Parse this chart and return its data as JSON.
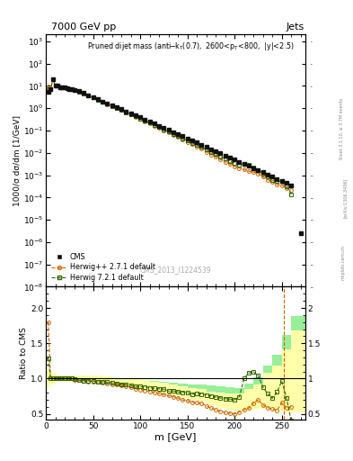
{
  "title_top": "7000 GeV pp",
  "title_right": "Jets",
  "watermark": "CMS_2013_I1224539",
  "rivet_label": "Rivet 3.1.10, ≥ 3.7M events",
  "arxiv_label": "[arXiv:1306.3436]",
  "mcplots_label": "mcplots.cern.ch",
  "ylabel_main": "1000/σ dσ/dm [1/GeV]",
  "ylabel_ratio": "Ratio to CMS",
  "xlabel": "m [GeV]",
  "xlim": [
    0,
    275
  ],
  "ylim_main": [
    1e-08,
    2000.0
  ],
  "ylim_ratio": [
    0.42,
    2.3
  ],
  "cms_color": "#111111",
  "herwig271_color": "#cc6600",
  "herwig721_color": "#336600",
  "band271_color": "#ffffaa",
  "band721_color": "#99ee99",
  "cms_x": [
    2.5,
    5,
    7.5,
    10,
    12.5,
    15,
    17.5,
    20,
    22.5,
    25,
    27.5,
    30,
    35,
    40,
    45,
    50,
    55,
    60,
    65,
    70,
    75,
    80,
    85,
    90,
    95,
    100,
    105,
    110,
    115,
    120,
    125,
    130,
    135,
    140,
    145,
    150,
    155,
    160,
    165,
    170,
    175,
    180,
    185,
    190,
    195,
    200,
    205,
    210,
    215,
    220,
    225,
    230,
    235,
    240,
    245,
    250,
    255,
    260
  ],
  "cms_y": [
    5.5,
    7,
    20,
    10,
    10,
    9,
    9,
    8.5,
    8,
    7.5,
    7.2,
    6.8,
    5.8,
    4.8,
    3.8,
    3.1,
    2.5,
    2.0,
    1.65,
    1.35,
    1.1,
    0.9,
    0.73,
    0.59,
    0.48,
    0.39,
    0.315,
    0.255,
    0.205,
    0.165,
    0.133,
    0.107,
    0.086,
    0.069,
    0.056,
    0.045,
    0.036,
    0.029,
    0.023,
    0.018,
    0.0146,
    0.0118,
    0.0095,
    0.0077,
    0.0062,
    0.005,
    0.004,
    0.0032,
    0.0026,
    0.0021,
    0.00168,
    0.00134,
    0.00107,
    0.00086,
    0.00069,
    0.00055,
    0.00044,
    0.00035
  ],
  "hw271_x": [
    2.5,
    5,
    7.5,
    10,
    12.5,
    15,
    17.5,
    20,
    22.5,
    25,
    27.5,
    30,
    35,
    40,
    45,
    50,
    55,
    60,
    65,
    70,
    75,
    80,
    85,
    90,
    95,
    100,
    105,
    110,
    115,
    120,
    125,
    130,
    135,
    140,
    145,
    150,
    155,
    160,
    165,
    170,
    175,
    180,
    185,
    190,
    195,
    200,
    205,
    210,
    215,
    220,
    225,
    230,
    235,
    240,
    245,
    250,
    255,
    260
  ],
  "hw271_y": [
    9.9,
    7,
    20,
    10,
    10,
    9,
    9,
    8.5,
    8,
    7.5,
    7.2,
    6.65,
    5.65,
    4.62,
    3.65,
    2.98,
    2.38,
    1.88,
    1.54,
    1.24,
    1.0,
    0.81,
    0.65,
    0.52,
    0.41,
    0.33,
    0.262,
    0.209,
    0.165,
    0.13,
    0.103,
    0.081,
    0.064,
    0.05,
    0.039,
    0.031,
    0.024,
    0.019,
    0.015,
    0.011,
    0.0085,
    0.0066,
    0.0051,
    0.004,
    0.00316,
    0.0025,
    0.0021,
    0.00179,
    0.00151,
    0.00137,
    0.00117,
    0.00084,
    0.00063,
    0.00049,
    0.00038,
    0.00036,
    0.00026,
    0.00021
  ],
  "hw721_x": [
    2.5,
    5,
    7.5,
    10,
    12.5,
    15,
    17.5,
    20,
    22.5,
    25,
    27.5,
    30,
    35,
    40,
    45,
    50,
    55,
    60,
    65,
    70,
    75,
    80,
    85,
    90,
    95,
    100,
    105,
    110,
    115,
    120,
    125,
    130,
    135,
    140,
    145,
    150,
    155,
    160,
    165,
    170,
    175,
    180,
    185,
    190,
    195,
    200,
    205,
    210,
    215,
    220,
    225,
    230,
    235,
    240,
    245,
    250,
    255,
    260
  ],
  "hw721_y": [
    7.1,
    7,
    20,
    10,
    10,
    9,
    9,
    8.5,
    8,
    7.5,
    7.2,
    6.72,
    5.68,
    4.66,
    3.69,
    2.98,
    2.4,
    1.9,
    1.57,
    1.27,
    1.02,
    0.828,
    0.668,
    0.535,
    0.427,
    0.346,
    0.278,
    0.222,
    0.177,
    0.141,
    0.113,
    0.088,
    0.071,
    0.056,
    0.045,
    0.036,
    0.028,
    0.023,
    0.018,
    0.0138,
    0.011,
    0.0087,
    0.0069,
    0.0055,
    0.0044,
    0.0035,
    0.00296,
    0.0032,
    0.0028,
    0.0023,
    0.00175,
    0.00118,
    0.00084,
    0.00062,
    0.00056,
    0.00053,
    0.00032,
    0.00014
  ],
  "ratio271_x": [
    2.5,
    5,
    7.5,
    10,
    12.5,
    15,
    17.5,
    20,
    22.5,
    25,
    27.5,
    30,
    35,
    40,
    45,
    50,
    55,
    60,
    65,
    70,
    75,
    80,
    85,
    90,
    95,
    100,
    105,
    110,
    115,
    120,
    125,
    130,
    135,
    140,
    145,
    150,
    155,
    160,
    165,
    170,
    175,
    180,
    185,
    190,
    195,
    200,
    205,
    210,
    215,
    220,
    225,
    230,
    235,
    240,
    245,
    250,
    255,
    260
  ],
  "ratio271_y": [
    1.8,
    1.0,
    1.0,
    1.0,
    1.0,
    1.0,
    1.0,
    1.0,
    1.0,
    1.0,
    1.0,
    0.978,
    0.974,
    0.963,
    0.96,
    0.96,
    0.952,
    0.94,
    0.935,
    0.919,
    0.91,
    0.9,
    0.89,
    0.881,
    0.854,
    0.846,
    0.832,
    0.82,
    0.805,
    0.788,
    0.774,
    0.757,
    0.744,
    0.724,
    0.696,
    0.688,
    0.666,
    0.655,
    0.652,
    0.61,
    0.582,
    0.559,
    0.537,
    0.519,
    0.51,
    0.5,
    0.525,
    0.559,
    0.581,
    0.652,
    0.696,
    0.627,
    0.589,
    0.569,
    0.55,
    0.655,
    0.591,
    0.6
  ],
  "ratio721_x": [
    2.5,
    5,
    7.5,
    10,
    12.5,
    15,
    17.5,
    20,
    22.5,
    25,
    27.5,
    30,
    35,
    40,
    45,
    50,
    55,
    60,
    65,
    70,
    75,
    80,
    85,
    90,
    95,
    100,
    105,
    110,
    115,
    120,
    125,
    130,
    135,
    140,
    145,
    150,
    155,
    160,
    165,
    170,
    175,
    180,
    185,
    190,
    195,
    200,
    205,
    210,
    215,
    220,
    225,
    230,
    235,
    240,
    245,
    250,
    255,
    260
  ],
  "ratio721_y": [
    1.29,
    1.0,
    1.0,
    1.0,
    1.0,
    1.0,
    1.0,
    1.0,
    1.0,
    1.0,
    1.0,
    0.988,
    0.979,
    0.971,
    0.971,
    0.962,
    0.96,
    0.95,
    0.952,
    0.941,
    0.927,
    0.92,
    0.915,
    0.907,
    0.89,
    0.887,
    0.882,
    0.871,
    0.863,
    0.855,
    0.85,
    0.822,
    0.826,
    0.811,
    0.804,
    0.8,
    0.778,
    0.793,
    0.782,
    0.767,
    0.753,
    0.737,
    0.726,
    0.714,
    0.71,
    0.7,
    0.74,
    1.0,
    1.077,
    1.095,
    1.042,
    0.881,
    0.785,
    0.721,
    0.81,
    0.964,
    0.727,
    0.4
  ],
  "band271_edges": [
    0,
    5,
    10,
    15,
    20,
    25,
    30,
    40,
    50,
    60,
    70,
    80,
    90,
    100,
    110,
    120,
    130,
    140,
    150,
    160,
    170,
    180,
    190,
    200,
    210,
    220,
    230,
    240,
    250,
    260,
    275
  ],
  "band271_lo": [
    0.88,
    0.92,
    0.95,
    0.96,
    0.96,
    0.96,
    0.95,
    0.95,
    0.94,
    0.92,
    0.9,
    0.88,
    0.86,
    0.84,
    0.82,
    0.79,
    0.76,
    0.73,
    0.7,
    0.67,
    0.62,
    0.59,
    0.56,
    0.54,
    0.55,
    0.57,
    0.58,
    0.55,
    0.52,
    0.52
  ],
  "band271_hi": [
    1.12,
    1.08,
    1.05,
    1.04,
    1.04,
    1.04,
    1.05,
    1.05,
    1.04,
    1.03,
    1.01,
    1.0,
    0.99,
    0.98,
    0.96,
    0.94,
    0.91,
    0.89,
    0.86,
    0.85,
    0.82,
    0.8,
    0.79,
    0.79,
    0.85,
    0.92,
    1.08,
    1.18,
    1.42,
    1.68
  ],
  "band721_edges": [
    0,
    5,
    10,
    15,
    20,
    25,
    30,
    40,
    50,
    60,
    70,
    80,
    90,
    100,
    110,
    120,
    130,
    140,
    150,
    160,
    170,
    180,
    190,
    200,
    210,
    220,
    230,
    240,
    250,
    260,
    275
  ],
  "band721_lo": [
    0.88,
    0.92,
    0.95,
    0.96,
    0.96,
    0.96,
    0.95,
    0.95,
    0.93,
    0.92,
    0.91,
    0.9,
    0.89,
    0.88,
    0.87,
    0.86,
    0.84,
    0.82,
    0.8,
    0.78,
    0.76,
    0.73,
    0.71,
    0.69,
    0.72,
    0.76,
    0.8,
    0.74,
    0.7,
    0.7
  ],
  "band721_hi": [
    1.12,
    1.08,
    1.05,
    1.04,
    1.04,
    1.04,
    1.05,
    1.05,
    1.04,
    1.02,
    1.01,
    1.0,
    0.99,
    0.98,
    0.97,
    0.96,
    0.94,
    0.93,
    0.92,
    0.91,
    0.9,
    0.89,
    0.88,
    0.87,
    0.93,
    1.02,
    1.18,
    1.34,
    1.62,
    1.88
  ],
  "extra_cms_x": 270,
  "extra_cms_y": 2.5e-06,
  "vline_x": 252
}
